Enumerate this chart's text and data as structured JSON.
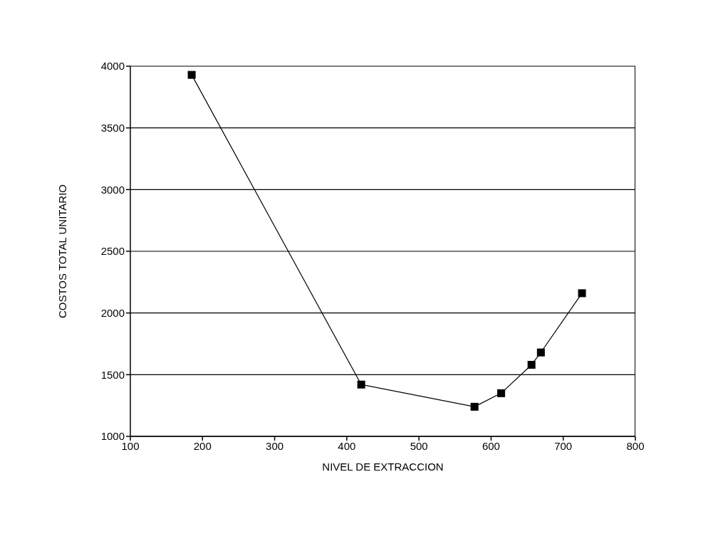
{
  "chart_data": {
    "type": "line",
    "xlabel": "NIVEL DE EXTRACCION",
    "ylabel": "COSTOS TOTAL UNITARIO",
    "x": [
      185,
      420,
      577,
      614,
      656,
      669,
      726
    ],
    "series": [
      {
        "color": "#000000",
        "values": [
          3930,
          1420,
          1240,
          1350,
          1580,
          1680,
          2160
        ]
      }
    ],
    "xlim": [
      100,
      800
    ],
    "xticks": [
      100,
      200,
      300,
      400,
      500,
      600,
      700,
      800
    ],
    "ylim": [
      1000,
      4000
    ],
    "yticks": [
      1000,
      1500,
      2000,
      2500,
      3000,
      3500,
      4000
    ],
    "grid": "y",
    "marker": "square",
    "line_style": "solid",
    "legend": false
  }
}
